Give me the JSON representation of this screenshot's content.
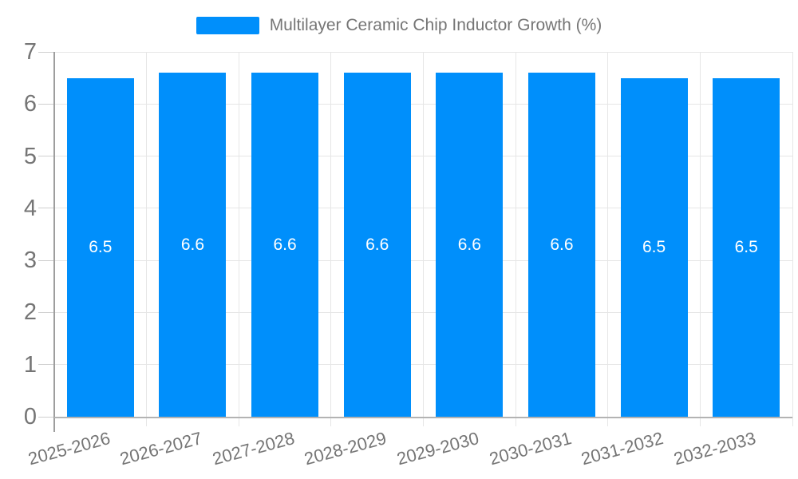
{
  "legend": {
    "series_label": "Multilayer Ceramic Chip Inductor Growth (%)",
    "marker_color": "#008FFB",
    "position": "top"
  },
  "chart_data": {
    "type": "bar",
    "title": "Multilayer Ceramic Chip Inductor Growth (%)",
    "categories": [
      "2025-2026",
      "2026-2027",
      "2027-2028",
      "2028-2029",
      "2029-2030",
      "2030-2031",
      "2031-2032",
      "2032-2033"
    ],
    "values": [
      6.5,
      6.6,
      6.6,
      6.6,
      6.6,
      6.6,
      6.5,
      6.5
    ],
    "xlabel": "",
    "ylabel": "",
    "ylim": [
      0,
      7
    ],
    "yticks": [
      0,
      1,
      2,
      3,
      4,
      5,
      6,
      7
    ],
    "grid": true,
    "legend_position": "top",
    "bar_color": "#008FFB",
    "bar_label_color": "#ffffff",
    "axis_text_color": "#757575",
    "gridline_color": "#e6e6e6"
  }
}
